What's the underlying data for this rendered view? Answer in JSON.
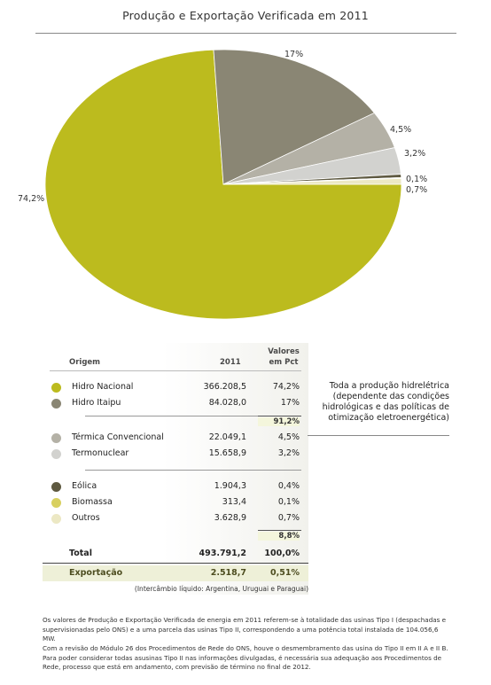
{
  "page": {
    "title": "Produção e Exportação Verificada em 2011"
  },
  "chart_data": {
    "type": "pie",
    "title": "Produção e Exportação Verificada em 2011",
    "slices": [
      {
        "label": "74,2%",
        "name": "Hidro Nacional",
        "value": 74.2,
        "color": "#bcbb1e"
      },
      {
        "label": "17%",
        "name": "Hidro Itaipu",
        "value": 17.0,
        "color": "#8a8674"
      },
      {
        "label": "4,5%",
        "name": "Térmica Convencional",
        "value": 4.5,
        "color": "#b4b1a6"
      },
      {
        "label": "3,2%",
        "name": "Termonuclear",
        "value": 3.2,
        "color": "#d2d2cf"
      },
      {
        "label": "0,4%",
        "name": "Eólica",
        "value": 0.4,
        "color": "#5e5940"
      },
      {
        "label": "0,1%",
        "name": "Biomassa",
        "value": 0.1,
        "color": "#d8d060"
      },
      {
        "label": "0,7%",
        "name": "Outros",
        "value": 0.7,
        "color": "#ece8c4"
      }
    ]
  },
  "table": {
    "header": {
      "origem": "Origem",
      "year": "2011",
      "pct_line1": "Valores",
      "pct_line2": "em Pct"
    },
    "rows": [
      {
        "name": "Hidro Nacional",
        "value": "366.208,5",
        "pct": "74,2%",
        "color": "#bcbb1e"
      },
      {
        "name": "Hidro Itaipu",
        "value": "84.028,0",
        "pct": "17%",
        "color": "#8a8674"
      },
      {
        "name": "Térmica Convencional",
        "value": "22.049,1",
        "pct": "4,5%",
        "color": "#b4b1a6"
      },
      {
        "name": "Termonuclear",
        "value": "15.658,9",
        "pct": "3,2%",
        "color": "#d2d2cf"
      },
      {
        "name": "Eólica",
        "value": "1.904,3",
        "pct": "0,4%",
        "color": "#5e5940"
      },
      {
        "name": "Biomassa",
        "value": "313,4",
        "pct": "0,1%",
        "color": "#d8d060"
      },
      {
        "name": "Outros",
        "value": "3.628,9",
        "pct": "0,7%",
        "color": "#ece8c4"
      }
    ],
    "subtotal_hydro": "91,2%",
    "subtotal_other": "8,8%",
    "total": {
      "label": "Total",
      "value": "493.791,2",
      "pct": "100,0%"
    },
    "export": {
      "label": "Exportação",
      "value": "2.518,7",
      "pct": "0,51%"
    },
    "export_note": "(Intercâmbio líquido: Argentina, Uruguai e Paraguai)"
  },
  "side_note": {
    "line1": "Toda a produção hidrelétrica",
    "line2": "(dependente das condições",
    "line3": "hidrológicas e das políticas de",
    "line4": "otimização eletroenergética)"
  },
  "footnotes": {
    "p1": "Os valores de Produção e Exportação Verificada de energia em 2011 referem-se à totalidade das usinas Tipo I (despachadas e supervisionadas pelo ONS) e a uma parcela das usinas Tipo II, correspondendo a uma potência total instalada de 104.056,6 MW.",
    "p2": "Com a revisão do Módulo 26 dos Procedimentos de Rede do ONS, houve o desmembramento das usina do Tipo II em II A e II B. Para poder considerar todas asusinas Tipo II nas informações divulgadas, é necessária sua adequação aos Procedimentos de Rede, processo que está em andamento, com previsão de término no final de 2012."
  }
}
